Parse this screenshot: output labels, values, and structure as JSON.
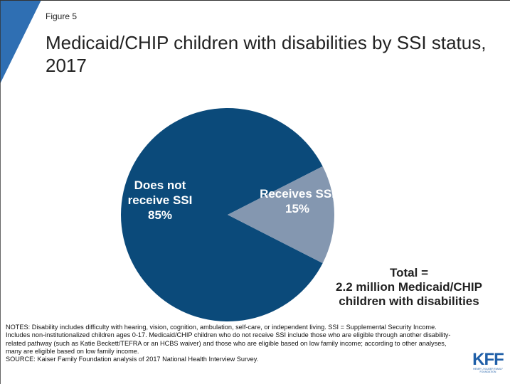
{
  "figure_label": "Figure 5",
  "chart_data": {
    "type": "pie",
    "title": "Medicaid/CHIP children with disabilities by SSI status, 2017",
    "categories": [
      "Does not receive SSI",
      "Receives SSI"
    ],
    "values": [
      85,
      15
    ],
    "value_labels": [
      "85%",
      "15%"
    ],
    "colors": [
      "#0b4a7a",
      "#8497b0"
    ],
    "annotation": [
      "Total =",
      "2.2 million Medicaid/CHIP",
      "children with disabilities"
    ]
  },
  "notes": "NOTES: Disability includes difficulty with hearing, vision, cognition, ambulation, self-care, or independent living.  SSI = Supplemental Security Income.  Includes non-institutionalized children ages 0-17.  Medicaid/CHIP children who do not receive SSI include those who are eligible through another disability-related pathway (such as Katie Beckett/TEFRA or an HCBS waiver) and those who are eligible based on low family income; according to other analyses, many are eligible based on low family income.",
  "source": "SOURCE: Kaiser Family Foundation analysis of 2017 National Health Interview Survey.",
  "logo": {
    "text": "KFF",
    "subtext": "HENRY J KAISER FAMILY FOUNDATION"
  }
}
